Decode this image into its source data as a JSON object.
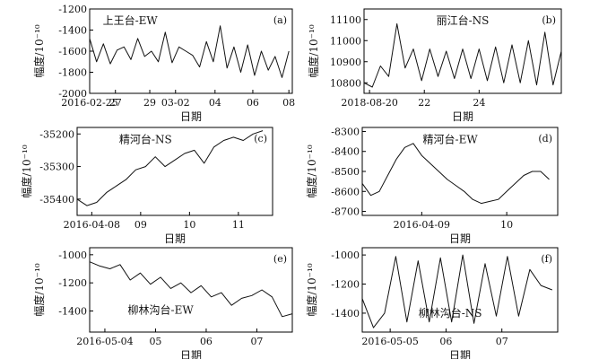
{
  "chart_data": [
    {
      "panel_label": "(a)",
      "title": "上王台-EW",
      "type": "line",
      "xlabel": "日期",
      "ylabel": "幅度/10⁻¹⁰",
      "xlim": [
        0,
        11.8
      ],
      "ylim": [
        -2000,
        -1200
      ],
      "xticks": [
        [
          0,
          "2016-02-25"
        ],
        [
          1.5,
          "27"
        ],
        [
          3.5,
          "29"
        ],
        [
          5.0,
          "03-02"
        ],
        [
          7.3,
          "04"
        ],
        [
          9.5,
          "06"
        ],
        [
          11.6,
          "08"
        ]
      ],
      "yticks": [
        -1200,
        -1400,
        -1600,
        -1800,
        -2000
      ],
      "x": [
        0,
        0.4,
        0.8,
        1.2,
        1.6,
        2.0,
        2.4,
        2.8,
        3.2,
        3.6,
        4.0,
        4.4,
        4.8,
        5.2,
        5.6,
        6.0,
        6.4,
        6.8,
        7.2,
        7.6,
        8.0,
        8.4,
        8.8,
        9.2,
        9.6,
        10.0,
        10.4,
        10.8,
        11.2,
        11.6
      ],
      "y": [
        -1480,
        -1700,
        -1530,
        -1720,
        -1590,
        -1560,
        -1680,
        -1480,
        -1650,
        -1600,
        -1700,
        -1420,
        -1710,
        -1560,
        -1600,
        -1640,
        -1750,
        -1510,
        -1700,
        -1360,
        -1760,
        -1560,
        -1800,
        -1540,
        -1830,
        -1600,
        -1780,
        -1650,
        -1850,
        -1600
      ]
    },
    {
      "panel_label": "(b)",
      "title": "丽江台-NS",
      "type": "line",
      "xlabel": "日期",
      "ylabel": "幅度/10⁻¹⁰",
      "xlim": [
        0,
        7.2
      ],
      "ylim": [
        10750,
        11150
      ],
      "xticks": [
        [
          0.2,
          "2018-08-20"
        ],
        [
          2.2,
          "22"
        ],
        [
          4.2,
          "24"
        ]
      ],
      "yticks": [
        11100,
        11000,
        10900,
        10800
      ],
      "x": [
        0,
        0.3,
        0.6,
        0.9,
        1.2,
        1.5,
        1.8,
        2.1,
        2.4,
        2.7,
        3.0,
        3.3,
        3.6,
        3.9,
        4.2,
        4.5,
        4.8,
        5.1,
        5.4,
        5.7,
        6.0,
        6.3,
        6.6,
        6.9,
        7.2
      ],
      "y": [
        10800,
        10780,
        10880,
        10830,
        11080,
        10870,
        10960,
        10810,
        10960,
        10830,
        10950,
        10820,
        10960,
        10820,
        10960,
        10810,
        10970,
        10800,
        10980,
        10800,
        11000,
        10790,
        11040,
        10790,
        10950
      ]
    },
    {
      "panel_label": "(c)",
      "title": "精河台-NS",
      "type": "line",
      "xlabel": "日期",
      "ylabel": "幅度/10⁻¹⁰",
      "xlim": [
        0,
        4.0
      ],
      "ylim": [
        -35450,
        -35180
      ],
      "xticks": [
        [
          0.3,
          "2016-04-08"
        ],
        [
          1.3,
          "09"
        ],
        [
          2.3,
          "10"
        ],
        [
          3.3,
          "11"
        ]
      ],
      "yticks": [
        -35200,
        -35300,
        -35400
      ],
      "x": [
        0,
        0.2,
        0.4,
        0.6,
        0.8,
        1.0,
        1.2,
        1.4,
        1.6,
        1.8,
        2.0,
        2.2,
        2.4,
        2.6,
        2.8,
        3.0,
        3.2,
        3.4,
        3.6,
        3.8
      ],
      "y": [
        -35400,
        -35420,
        -35410,
        -35380,
        -35360,
        -35340,
        -35310,
        -35300,
        -35270,
        -35300,
        -35280,
        -35260,
        -35250,
        -35290,
        -35240,
        -35220,
        -35210,
        -35220,
        -35200,
        -35190
      ]
    },
    {
      "panel_label": "(d)",
      "title": "精河台-EW",
      "type": "line",
      "xlabel": "日期",
      "ylabel": "幅度/10⁻¹⁰",
      "xlim": [
        0,
        2.3
      ],
      "ylim": [
        -8720,
        -8280
      ],
      "xticks": [
        [
          0.7,
          "2016-04-09"
        ],
        [
          1.7,
          "10"
        ]
      ],
      "yticks": [
        -8300,
        -8400,
        -8500,
        -8600,
        -8700
      ],
      "x": [
        0,
        0.1,
        0.2,
        0.3,
        0.4,
        0.5,
        0.6,
        0.7,
        0.8,
        0.9,
        1.0,
        1.1,
        1.2,
        1.3,
        1.4,
        1.5,
        1.6,
        1.7,
        1.8,
        1.9,
        2.0,
        2.1,
        2.2
      ],
      "y": [
        -8560,
        -8620,
        -8600,
        -8520,
        -8440,
        -8380,
        -8360,
        -8420,
        -8460,
        -8500,
        -8540,
        -8570,
        -8600,
        -8640,
        -8660,
        -8650,
        -8640,
        -8600,
        -8560,
        -8520,
        -8500,
        -8500,
        -8540
      ]
    },
    {
      "panel_label": "(e)",
      "title": "柳林沟台-EW",
      "type": "line",
      "xlabel": "日期",
      "ylabel": "幅度/10⁻¹⁰",
      "xlim": [
        0,
        4.0
      ],
      "ylim": [
        -1550,
        -950
      ],
      "xticks": [
        [
          0.3,
          "2016-05-04"
        ],
        [
          1.3,
          "05"
        ],
        [
          2.3,
          "06"
        ],
        [
          3.3,
          "07"
        ]
      ],
      "yticks": [
        -1000,
        -1200,
        -1400
      ],
      "x": [
        0,
        0.2,
        0.4,
        0.6,
        0.8,
        1.0,
        1.2,
        1.4,
        1.6,
        1.8,
        2.0,
        2.2,
        2.4,
        2.6,
        2.8,
        3.0,
        3.2,
        3.4,
        3.6,
        3.8,
        4.0
      ],
      "y": [
        -1050,
        -1080,
        -1100,
        -1070,
        -1180,
        -1130,
        -1210,
        -1160,
        -1240,
        -1200,
        -1270,
        -1220,
        -1300,
        -1270,
        -1360,
        -1310,
        -1290,
        -1250,
        -1300,
        -1440,
        -1420
      ]
    },
    {
      "panel_label": "(f)",
      "title": "柳林沟台-NS",
      "type": "line",
      "xlabel": "日期",
      "ylabel": "幅度/10⁻¹⁰",
      "xlim": [
        0,
        3.5
      ],
      "ylim": [
        -1530,
        -950
      ],
      "xticks": [
        [
          0.5,
          "2016-05-05"
        ],
        [
          1.5,
          "06"
        ],
        [
          2.5,
          "07"
        ]
      ],
      "yticks": [
        -1000,
        -1200,
        -1400
      ],
      "x": [
        0,
        0.2,
        0.4,
        0.6,
        0.8,
        1.0,
        1.2,
        1.4,
        1.6,
        1.8,
        2.0,
        2.2,
        2.4,
        2.6,
        2.8,
        3.0,
        3.2,
        3.4
      ],
      "y": [
        -1300,
        -1500,
        -1400,
        -1010,
        -1460,
        -1040,
        -1460,
        -1020,
        -1460,
        -1000,
        -1470,
        -1060,
        -1420,
        -1010,
        -1420,
        -1100,
        -1210,
        -1240
      ]
    }
  ]
}
